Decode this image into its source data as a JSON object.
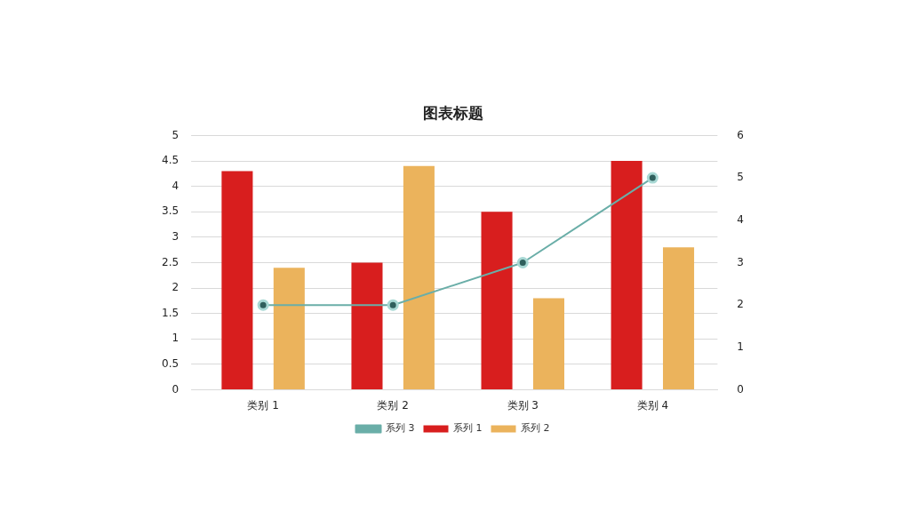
{
  "chart_data": {
    "type": "bar",
    "title": "图表标题",
    "categories": [
      "类别 1",
      "类别 2",
      "类别 3",
      "类别 4"
    ],
    "series": [
      {
        "name": "系列 1",
        "color": "#d81e1e",
        "values": [
          4.3,
          2.5,
          3.5,
          4.5
        ]
      },
      {
        "name": "系列 2",
        "color": "#ebb35c",
        "values": [
          2.4,
          4.4,
          1.8,
          2.8
        ]
      },
      {
        "name": "系列 3",
        "color": "#6aaea8",
        "values": [
          2,
          2,
          3,
          5
        ],
        "type": "line",
        "axis": "y2",
        "marker": "circle"
      }
    ],
    "ylim": [
      0,
      5
    ],
    "yticks": [
      0,
      0.5,
      1,
      1.5,
      2,
      2.5,
      3,
      3.5,
      4,
      4.5,
      5
    ],
    "y2lim": [
      0,
      6
    ],
    "y2ticks": [
      0,
      1,
      2,
      3,
      4,
      5,
      6
    ],
    "grid": "y",
    "legend": "bottom"
  }
}
